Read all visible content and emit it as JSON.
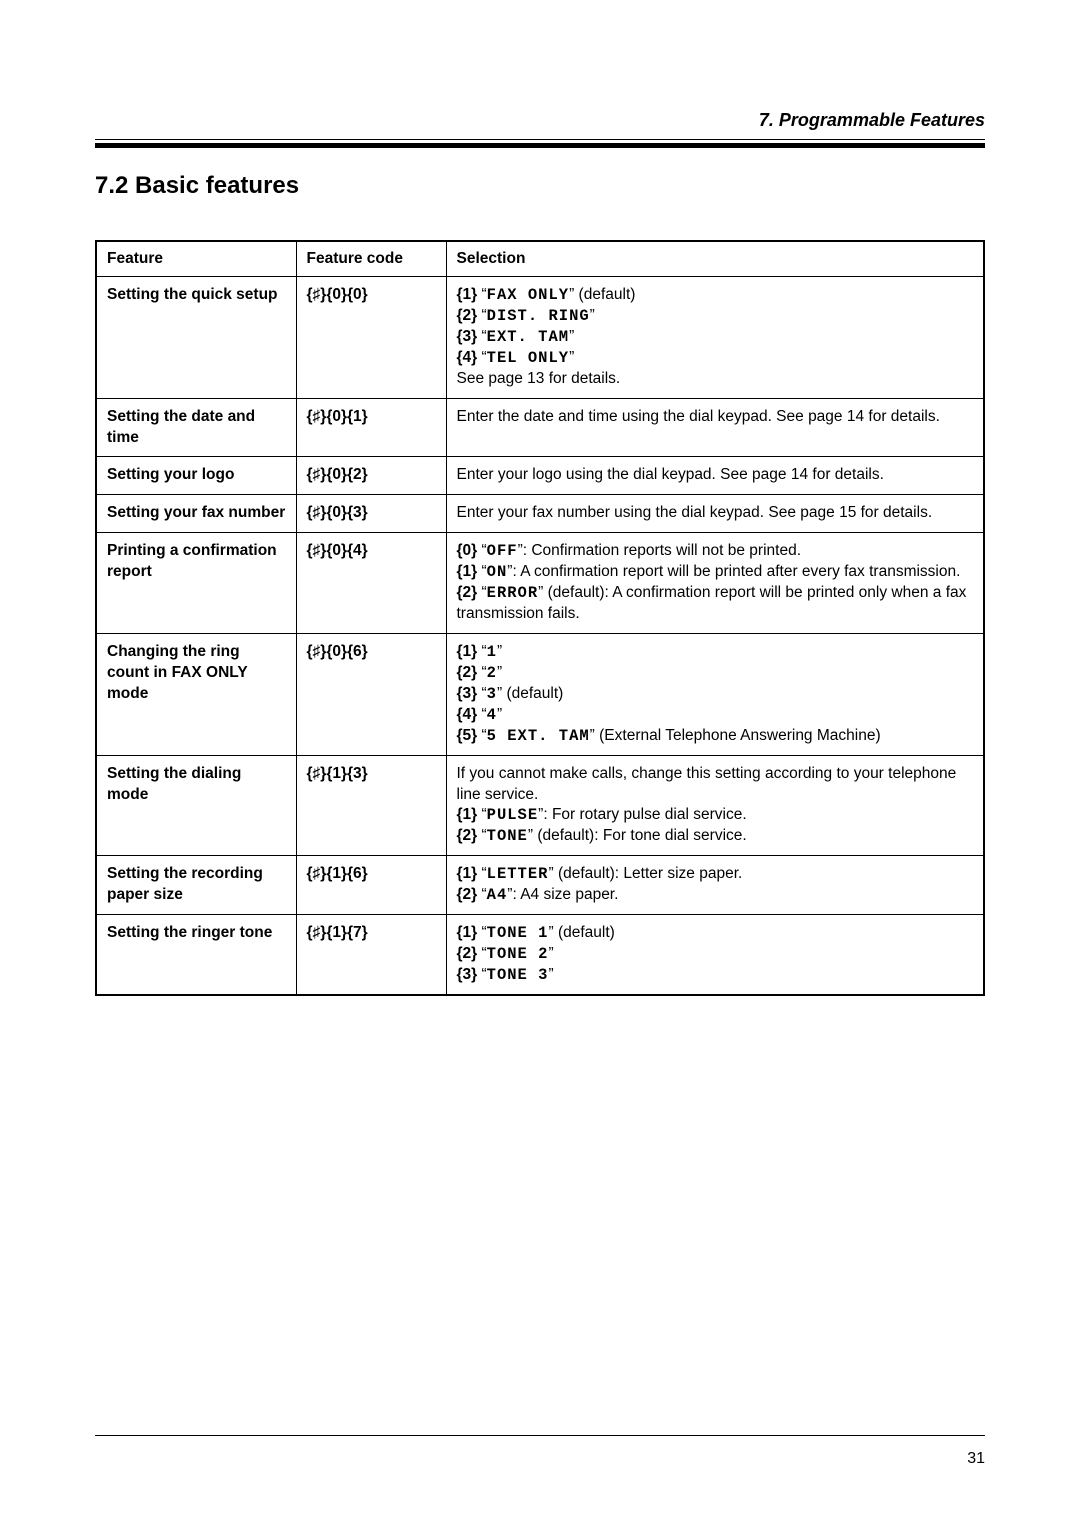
{
  "header": {
    "chapter": "7. Programmable Features"
  },
  "section": {
    "title": "7.2 Basic features"
  },
  "table": {
    "headers": {
      "feature": "Feature",
      "code": "Feature code",
      "selection": "Selection"
    },
    "hash_glyph": "♯",
    "rows": [
      {
        "feature": "Setting the quick setup",
        "code_digits": [
          "0",
          "0"
        ],
        "selection_lines": [
          {
            "key": "1",
            "mono": "FAX ONLY",
            "trail": " (default)"
          },
          {
            "key": "2",
            "mono": "DIST. RING",
            "trail": ""
          },
          {
            "key": "3",
            "mono": "EXT. TAM",
            "trail": ""
          },
          {
            "key": "4",
            "mono": "TEL ONLY",
            "trail": ""
          },
          {
            "plain": "See page 13 for details."
          }
        ]
      },
      {
        "feature": "Setting the date and time",
        "code_digits": [
          "0",
          "1"
        ],
        "selection_lines": [
          {
            "plain": "Enter the date and time using the dial keypad. See page 14 for details."
          }
        ]
      },
      {
        "feature": "Setting your logo",
        "code_digits": [
          "0",
          "2"
        ],
        "selection_lines": [
          {
            "plain": "Enter your logo using the dial keypad. See page 14 for details."
          }
        ]
      },
      {
        "feature": "Setting your fax number",
        "code_digits": [
          "0",
          "3"
        ],
        "selection_lines": [
          {
            "plain": "Enter your fax number using the dial keypad. See page 15 for details."
          }
        ]
      },
      {
        "feature": "Printing a confirmation report",
        "code_digits": [
          "0",
          "4"
        ],
        "selection_lines": [
          {
            "key": "0",
            "mono": "OFF",
            "trail": ": Confirmation reports will not be printed."
          },
          {
            "key": "1",
            "mono": "ON",
            "trail": ": A confirmation report will be printed after every fax transmission."
          },
          {
            "key": "2",
            "mono": "ERROR",
            "trail": " (default): A confirmation report will be printed only when a fax transmission fails."
          }
        ]
      },
      {
        "feature": "Changing the ring count in FAX ONLY mode",
        "code_digits": [
          "0",
          "6"
        ],
        "selection_lines": [
          {
            "key": "1",
            "mono": "1",
            "trail": ""
          },
          {
            "key": "2",
            "mono": "2",
            "trail": ""
          },
          {
            "key": "3",
            "mono": "3",
            "trail": " (default)"
          },
          {
            "key": "4",
            "mono": "4",
            "trail": ""
          },
          {
            "key": "5",
            "mono": "5 EXT. TAM",
            "trail": " (External Telephone Answering Machine)"
          }
        ]
      },
      {
        "feature": "Setting the dialing mode",
        "code_digits": [
          "1",
          "3"
        ],
        "selection_lines": [
          {
            "plain": "If you cannot make calls, change this setting according to your telephone line service."
          },
          {
            "key": "1",
            "mono": "PULSE",
            "trail": ": For rotary pulse dial service."
          },
          {
            "key": "2",
            "mono": "TONE",
            "trail": " (default): For tone dial service."
          }
        ]
      },
      {
        "feature": "Setting the recording paper size",
        "code_digits": [
          "1",
          "6"
        ],
        "selection_lines": [
          {
            "key": "1",
            "mono": "LETTER",
            "trail": " (default): Letter size paper."
          },
          {
            "key": "2",
            "mono": "A4",
            "trail": ": A4 size paper."
          }
        ]
      },
      {
        "feature": "Setting the ringer tone",
        "code_digits": [
          "1",
          "7"
        ],
        "selection_lines": [
          {
            "key": "1",
            "mono": "TONE 1",
            "trail": " (default)"
          },
          {
            "key": "2",
            "mono": "TONE 2",
            "trail": ""
          },
          {
            "key": "3",
            "mono": "TONE 3",
            "trail": ""
          }
        ]
      }
    ]
  },
  "footer": {
    "page_number": "31"
  }
}
